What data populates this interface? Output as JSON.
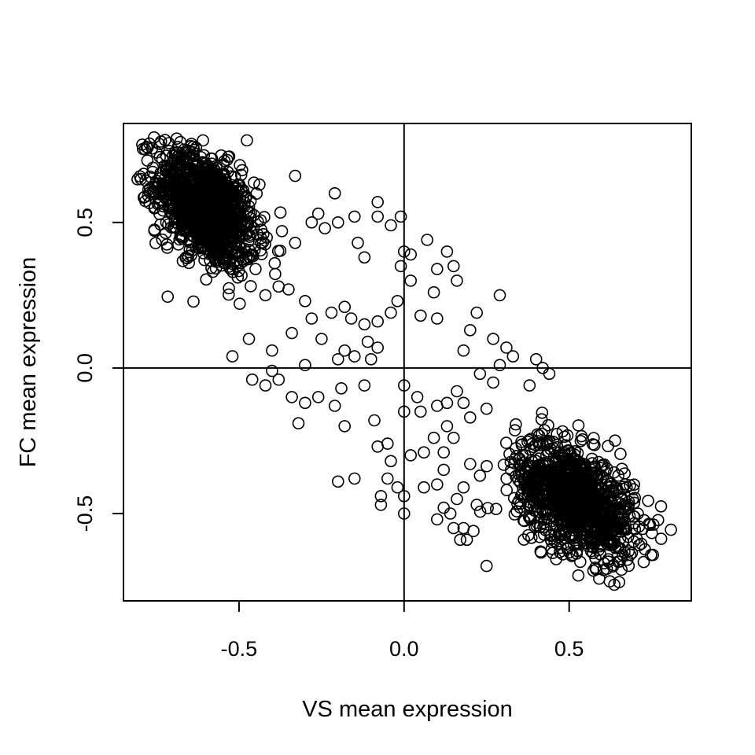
{
  "chart_data": {
    "type": "scatter",
    "title": "",
    "xlabel": "VS mean expression",
    "ylabel": "FC mean expression",
    "xlim": [
      -0.85,
      0.87
    ],
    "ylim": [
      -0.8,
      0.84
    ],
    "xticks": [
      -0.5,
      0.0,
      0.5
    ],
    "yticks": [
      -0.5,
      0.0,
      0.5
    ],
    "xtick_labels": [
      "-0.5",
      "0.0",
      "0.5"
    ],
    "ytick_labels": [
      "-0.5",
      "0.0",
      "0.5"
    ],
    "reference_lines": {
      "x": 0,
      "y": 0
    },
    "marker": "open-circle",
    "marker_color": "#000000",
    "grid": false,
    "clusters": [
      {
        "name": "upper-left cluster",
        "center": [
          -0.6,
          0.55
        ],
        "spread": [
          0.075,
          0.1
        ],
        "correlation": -0.45,
        "n": 1200
      },
      {
        "name": "lower-right cluster",
        "center": [
          0.52,
          -0.45
        ],
        "spread": [
          0.09,
          0.1
        ],
        "correlation": -0.45,
        "n": 1100
      }
    ],
    "scattered_points": [
      [
        -0.33,
        0.66
      ],
      [
        -0.37,
        0.47
      ],
      [
        -0.33,
        0.43
      ],
      [
        -0.28,
        0.5
      ],
      [
        -0.26,
        0.53
      ],
      [
        -0.24,
        0.48
      ],
      [
        -0.21,
        0.6
      ],
      [
        -0.2,
        0.5
      ],
      [
        -0.15,
        0.52
      ],
      [
        -0.14,
        0.43
      ],
      [
        -0.12,
        0.38
      ],
      [
        -0.08,
        0.57
      ],
      [
        -0.08,
        0.52
      ],
      [
        -0.04,
        0.49
      ],
      [
        -0.01,
        0.52
      ],
      [
        0.0,
        0.4
      ],
      [
        0.02,
        0.39
      ],
      [
        -0.01,
        0.35
      ],
      [
        0.02,
        0.3
      ],
      [
        0.07,
        0.44
      ],
      [
        0.1,
        0.34
      ],
      [
        0.13,
        0.4
      ],
      [
        0.15,
        0.35
      ],
      [
        0.16,
        0.3
      ],
      [
        0.09,
        0.26
      ],
      [
        0.29,
        0.25
      ],
      [
        -0.45,
        0.34
      ],
      [
        -0.42,
        0.25
      ],
      [
        -0.38,
        0.28
      ],
      [
        -0.35,
        0.27
      ],
      [
        -0.3,
        0.23
      ],
      [
        -0.28,
        0.17
      ],
      [
        -0.22,
        0.19
      ],
      [
        -0.18,
        0.21
      ],
      [
        -0.16,
        0.17
      ],
      [
        -0.12,
        0.15
      ],
      [
        -0.08,
        0.16
      ],
      [
        -0.04,
        0.19
      ],
      [
        -0.02,
        0.23
      ],
      [
        0.05,
        0.18
      ],
      [
        0.1,
        0.17
      ],
      [
        0.2,
        0.13
      ],
      [
        0.18,
        0.06
      ],
      [
        0.22,
        0.19
      ],
      [
        0.27,
        0.1
      ],
      [
        0.31,
        0.07
      ],
      [
        0.33,
        0.04
      ],
      [
        -0.47,
        0.1
      ],
      [
        -0.52,
        0.04
      ],
      [
        -0.4,
        0.06
      ],
      [
        -0.34,
        0.12
      ],
      [
        -0.3,
        0.01
      ],
      [
        -0.25,
        0.1
      ],
      [
        -0.2,
        0.03
      ],
      [
        -0.18,
        0.06
      ],
      [
        -0.15,
        0.04
      ],
      [
        -0.1,
        0.03
      ],
      [
        -0.11,
        0.09
      ],
      [
        -0.08,
        0.07
      ],
      [
        -0.42,
        -0.06
      ],
      [
        -0.46,
        -0.04
      ],
      [
        -0.38,
        -0.04
      ],
      [
        -0.4,
        -0.01
      ],
      [
        -0.34,
        -0.1
      ],
      [
        -0.3,
        -0.12
      ],
      [
        -0.32,
        -0.19
      ],
      [
        -0.26,
        -0.1
      ],
      [
        -0.21,
        -0.13
      ],
      [
        -0.18,
        -0.2
      ],
      [
        -0.19,
        -0.07
      ],
      [
        -0.12,
        -0.06
      ],
      [
        -0.09,
        -0.18
      ],
      [
        -0.0,
        -0.06
      ],
      [
        0.0,
        -0.15
      ],
      [
        0.04,
        -0.1
      ],
      [
        0.05,
        -0.15
      ],
      [
        0.09,
        -0.24
      ],
      [
        0.1,
        -0.13
      ],
      [
        0.13,
        -0.12
      ],
      [
        0.13,
        -0.2
      ],
      [
        0.16,
        -0.08
      ],
      [
        0.18,
        -0.12
      ],
      [
        0.2,
        -0.17
      ],
      [
        0.23,
        -0.02
      ],
      [
        0.27,
        -0.05
      ],
      [
        0.25,
        -0.14
      ],
      [
        0.29,
        0.01
      ],
      [
        -0.08,
        -0.27
      ],
      [
        -0.05,
        -0.26
      ],
      [
        -0.04,
        -0.32
      ],
      [
        -0.05,
        -0.38
      ],
      [
        -0.07,
        -0.44
      ],
      [
        -0.07,
        -0.47
      ],
      [
        -0.2,
        -0.39
      ],
      [
        -0.15,
        -0.38
      ],
      [
        -0.02,
        -0.41
      ],
      [
        0.0,
        -0.44
      ],
      [
        -0.0,
        -0.5
      ],
      [
        0.02,
        -0.3
      ],
      [
        0.06,
        -0.29
      ],
      [
        0.06,
        -0.41
      ],
      [
        0.1,
        -0.4
      ],
      [
        0.12,
        -0.35
      ],
      [
        0.12,
        -0.29
      ],
      [
        0.15,
        -0.24
      ],
      [
        0.1,
        -0.52
      ],
      [
        0.14,
        -0.5
      ],
      [
        0.16,
        -0.45
      ],
      [
        0.18,
        -0.55
      ],
      [
        0.17,
        -0.59
      ],
      [
        0.19,
        -0.59
      ],
      [
        0.21,
        -0.56
      ],
      [
        0.25,
        -0.68
      ],
      [
        0.23,
        -0.37
      ],
      [
        0.18,
        -0.41
      ],
      [
        0.2,
        -0.33
      ],
      [
        0.22,
        -0.47
      ],
      [
        0.15,
        -0.55
      ],
      [
        0.12,
        -0.48
      ],
      [
        0.4,
        0.03
      ],
      [
        0.44,
        -0.02
      ],
      [
        0.38,
        -0.06
      ],
      [
        0.42,
        0.0
      ]
    ]
  }
}
